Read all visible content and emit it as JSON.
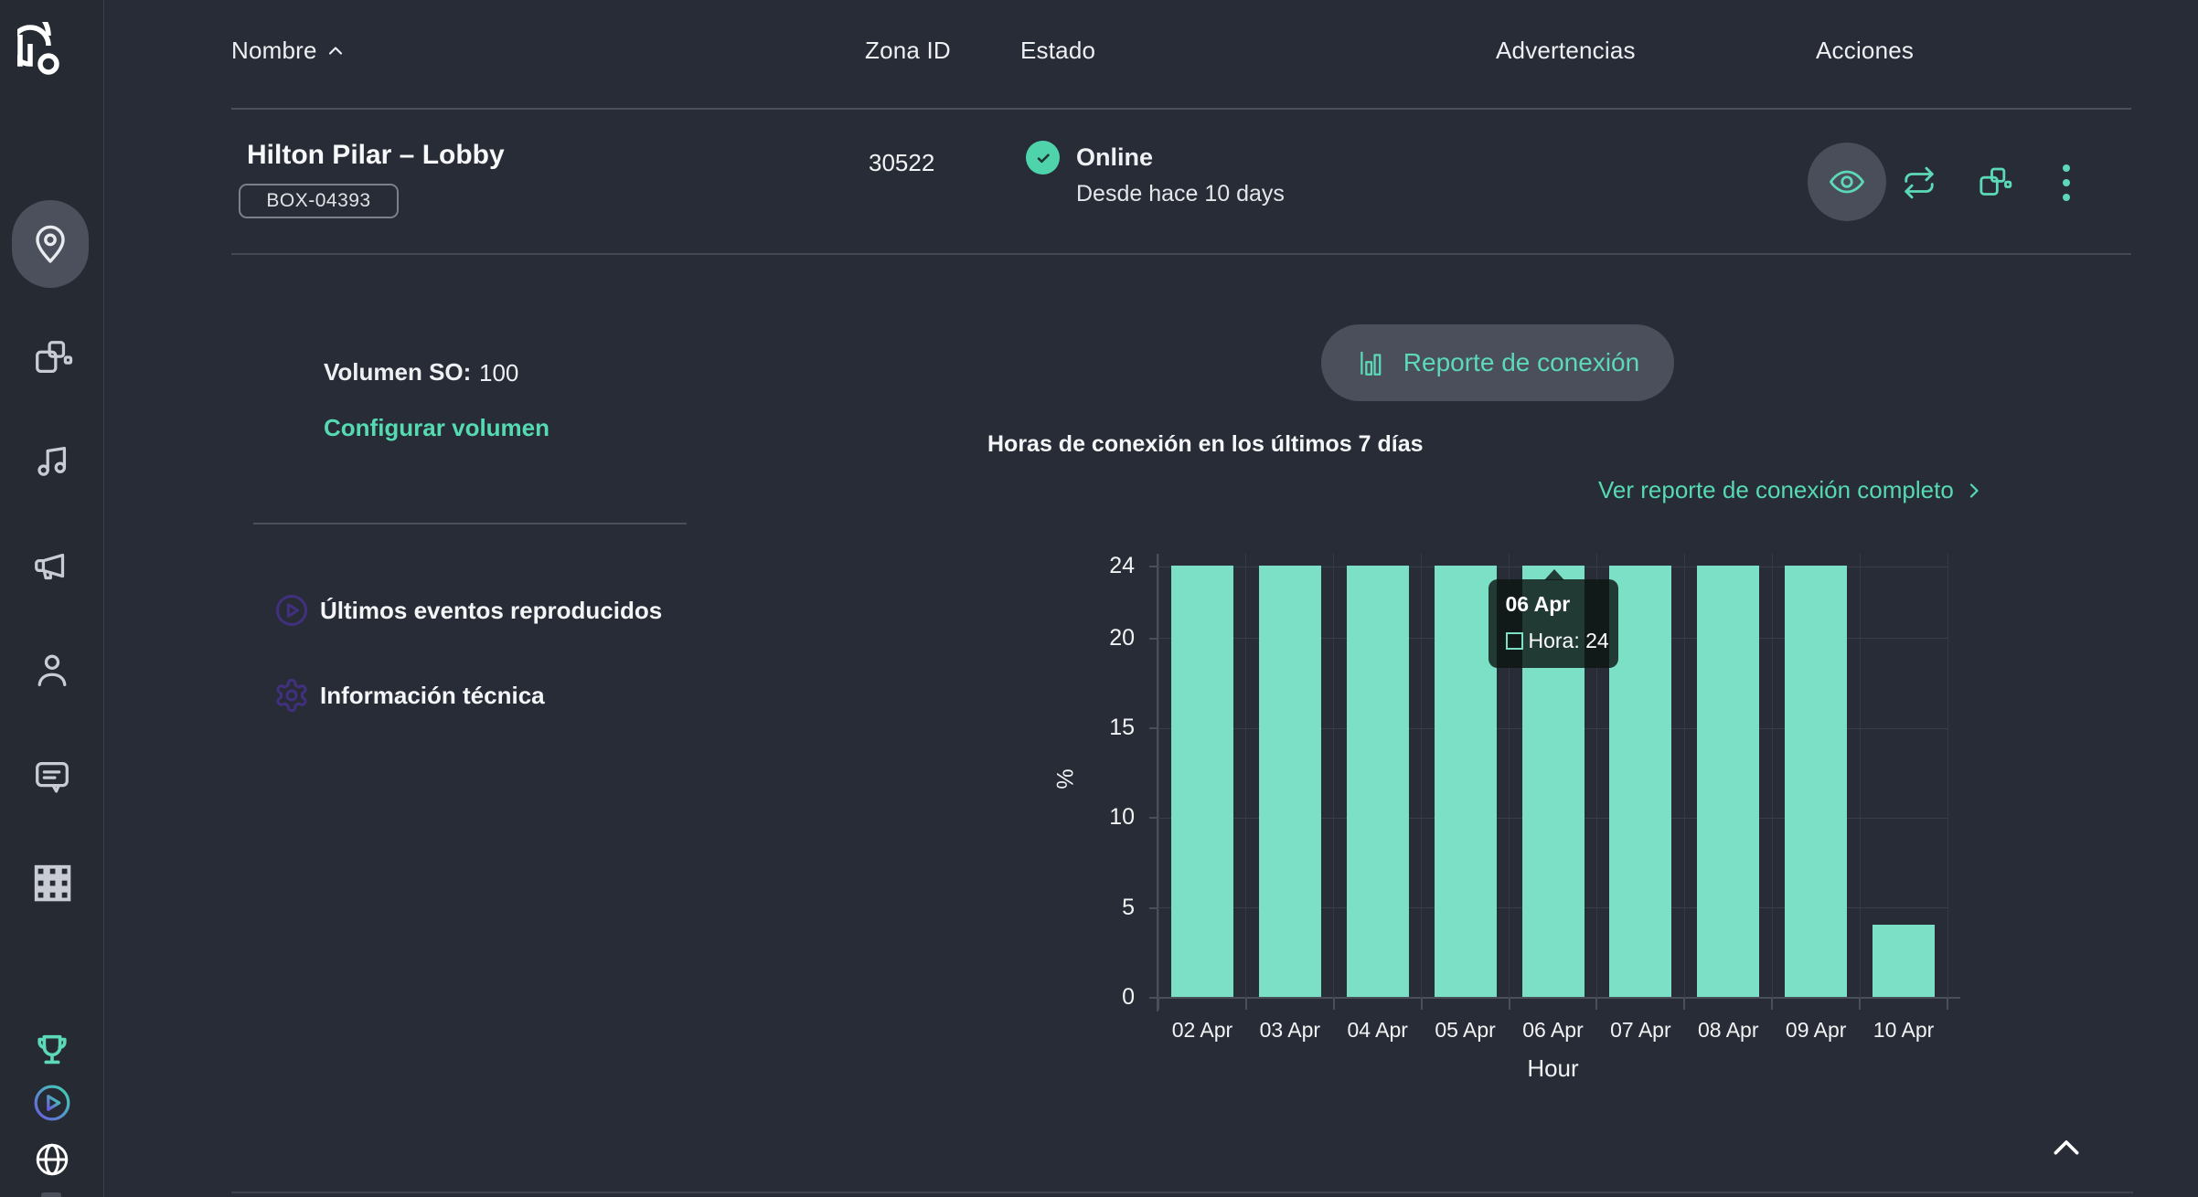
{
  "colors": {
    "accent": "#55dab2",
    "bar": "#7ce0c6",
    "status_green": "#4ed3ab",
    "purple": "#41307f",
    "background": "#282c36"
  },
  "sidebar": {
    "active_item": "locations",
    "icons": [
      "brand-logo",
      "location-pin",
      "zones-boxes",
      "music-note",
      "megaphone",
      "person",
      "chat-bubble",
      "apps-grid",
      "trophy",
      "play-circle",
      "globe"
    ]
  },
  "table": {
    "columns": {
      "name": "Nombre",
      "zone_id": "Zona ID",
      "status": "Estado",
      "warnings": "Advertencias",
      "actions": "Acciones"
    }
  },
  "row": {
    "name": "Hilton Pilar – Lobby",
    "badge": "BOX-04393",
    "zone_id": "30522",
    "status": "Online",
    "status_since": "Desde hace 10 days"
  },
  "detail": {
    "volume_label": "Volumen SO:",
    "volume_value": "100",
    "configure_volume_link": "Configurar volumen",
    "last_events_label": "Últimos eventos reproducidos",
    "tech_info_label": "Información técnica",
    "report_button_label": "Reporte de conexión",
    "full_report_link": "Ver reporte de conexión completo"
  },
  "chart_data": {
    "type": "bar",
    "title": "Horas de conexión en los últimos 7 días",
    "categories": [
      "02 Apr",
      "03 Apr",
      "04 Apr",
      "05 Apr",
      "06 Apr",
      "07 Apr",
      "08 Apr",
      "09 Apr",
      "10 Apr"
    ],
    "values": [
      24,
      24,
      24,
      24,
      24,
      24,
      24,
      24,
      4
    ],
    "xlabel": "Hour",
    "ylabel": "%",
    "ylim": [
      0,
      24
    ],
    "yticks": [
      0,
      5,
      10,
      15,
      20,
      24
    ],
    "grid": true,
    "legend_position": "none",
    "bar_color": "#7ce0c6",
    "tooltip": {
      "category": "06 Apr",
      "index": 4,
      "text": "Hora: 24"
    }
  }
}
